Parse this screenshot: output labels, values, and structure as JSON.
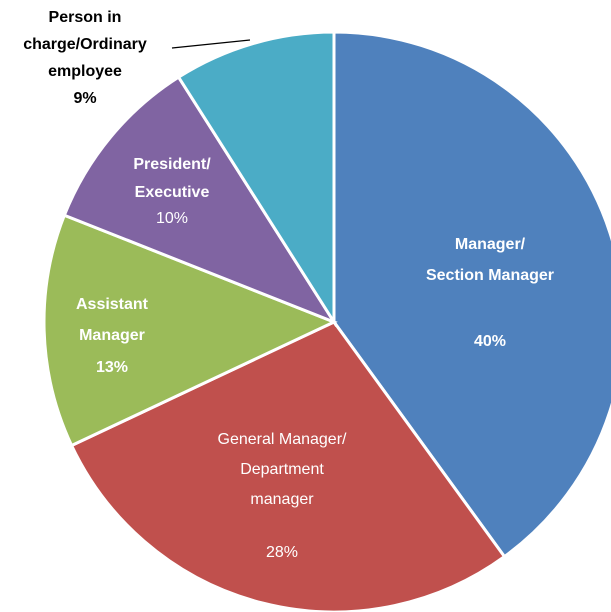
{
  "chart_data": {
    "type": "pie",
    "categories": [
      [
        "Manager/",
        "Section Manager"
      ],
      [
        "General Manager/",
        "Department",
        "manager"
      ],
      [
        "Assistant",
        "Manager"
      ],
      [
        "President/",
        "Executive"
      ],
      [
        "Person in",
        "charge/Ordinary",
        "employee"
      ]
    ],
    "values": [
      40,
      28,
      13,
      10,
      9
    ],
    "value_labels": [
      "40%",
      "28%",
      "13%",
      "10%",
      "9%"
    ],
    "colors": [
      "#4f81bd",
      "#c0504d",
      "#9bbb59",
      "#8064a2",
      "#4bacc6"
    ]
  }
}
